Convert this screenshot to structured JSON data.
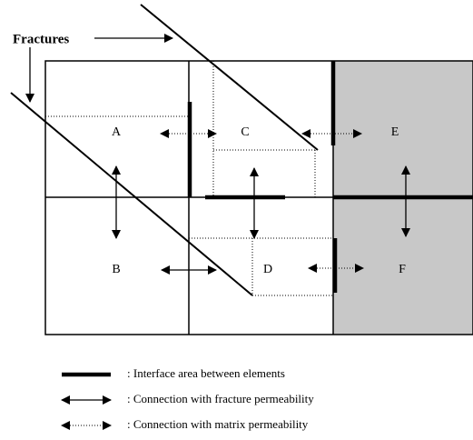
{
  "callout": "Fractures",
  "elements": [
    "A",
    "B",
    "C",
    "D",
    "E",
    "F"
  ],
  "legend": [
    {
      "label": ": Interface area between elements"
    },
    {
      "label": ": Connection with fracture permeability"
    },
    {
      "label": ": Connection with matrix permeability"
    }
  ]
}
